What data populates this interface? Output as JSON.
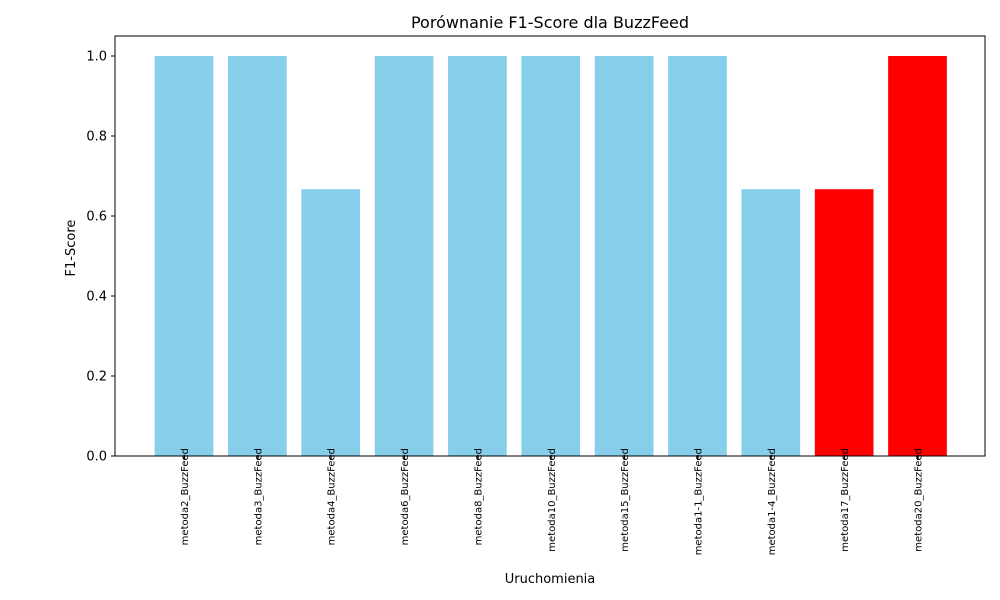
{
  "chart_data": {
    "type": "bar",
    "title": "Porównanie F1-Score dla BuzzFeed",
    "xlabel": "Uruchomienia",
    "ylabel": "F1-Score",
    "ylim": [
      0,
      1.05
    ],
    "yticks": [
      "0.0",
      "0.2",
      "0.4",
      "0.6",
      "0.8",
      "1.0"
    ],
    "grid": false,
    "categories": [
      "metoda2_BuzzFeed",
      "metoda3_BuzzFeed",
      "metoda4_BuzzFeed",
      "metoda6_BuzzFeed",
      "metoda8_BuzzFeed",
      "metoda10_BuzzFeed",
      "metoda15_BuzzFeed",
      "metoda1-1_BuzzFeed",
      "metoda1-4_BuzzFeed",
      "metoda17_BuzzFeed",
      "metoda20_BuzzFeed"
    ],
    "values": [
      1.0,
      1.0,
      0.667,
      1.0,
      1.0,
      1.0,
      1.0,
      1.0,
      0.667,
      0.667,
      1.0
    ],
    "bar_colors": [
      "#87CEEB",
      "#87CEEB",
      "#87CEEB",
      "#87CEEB",
      "#87CEEB",
      "#87CEEB",
      "#87CEEB",
      "#87CEEB",
      "#87CEEB",
      "#FF0000",
      "#FF0000"
    ]
  }
}
